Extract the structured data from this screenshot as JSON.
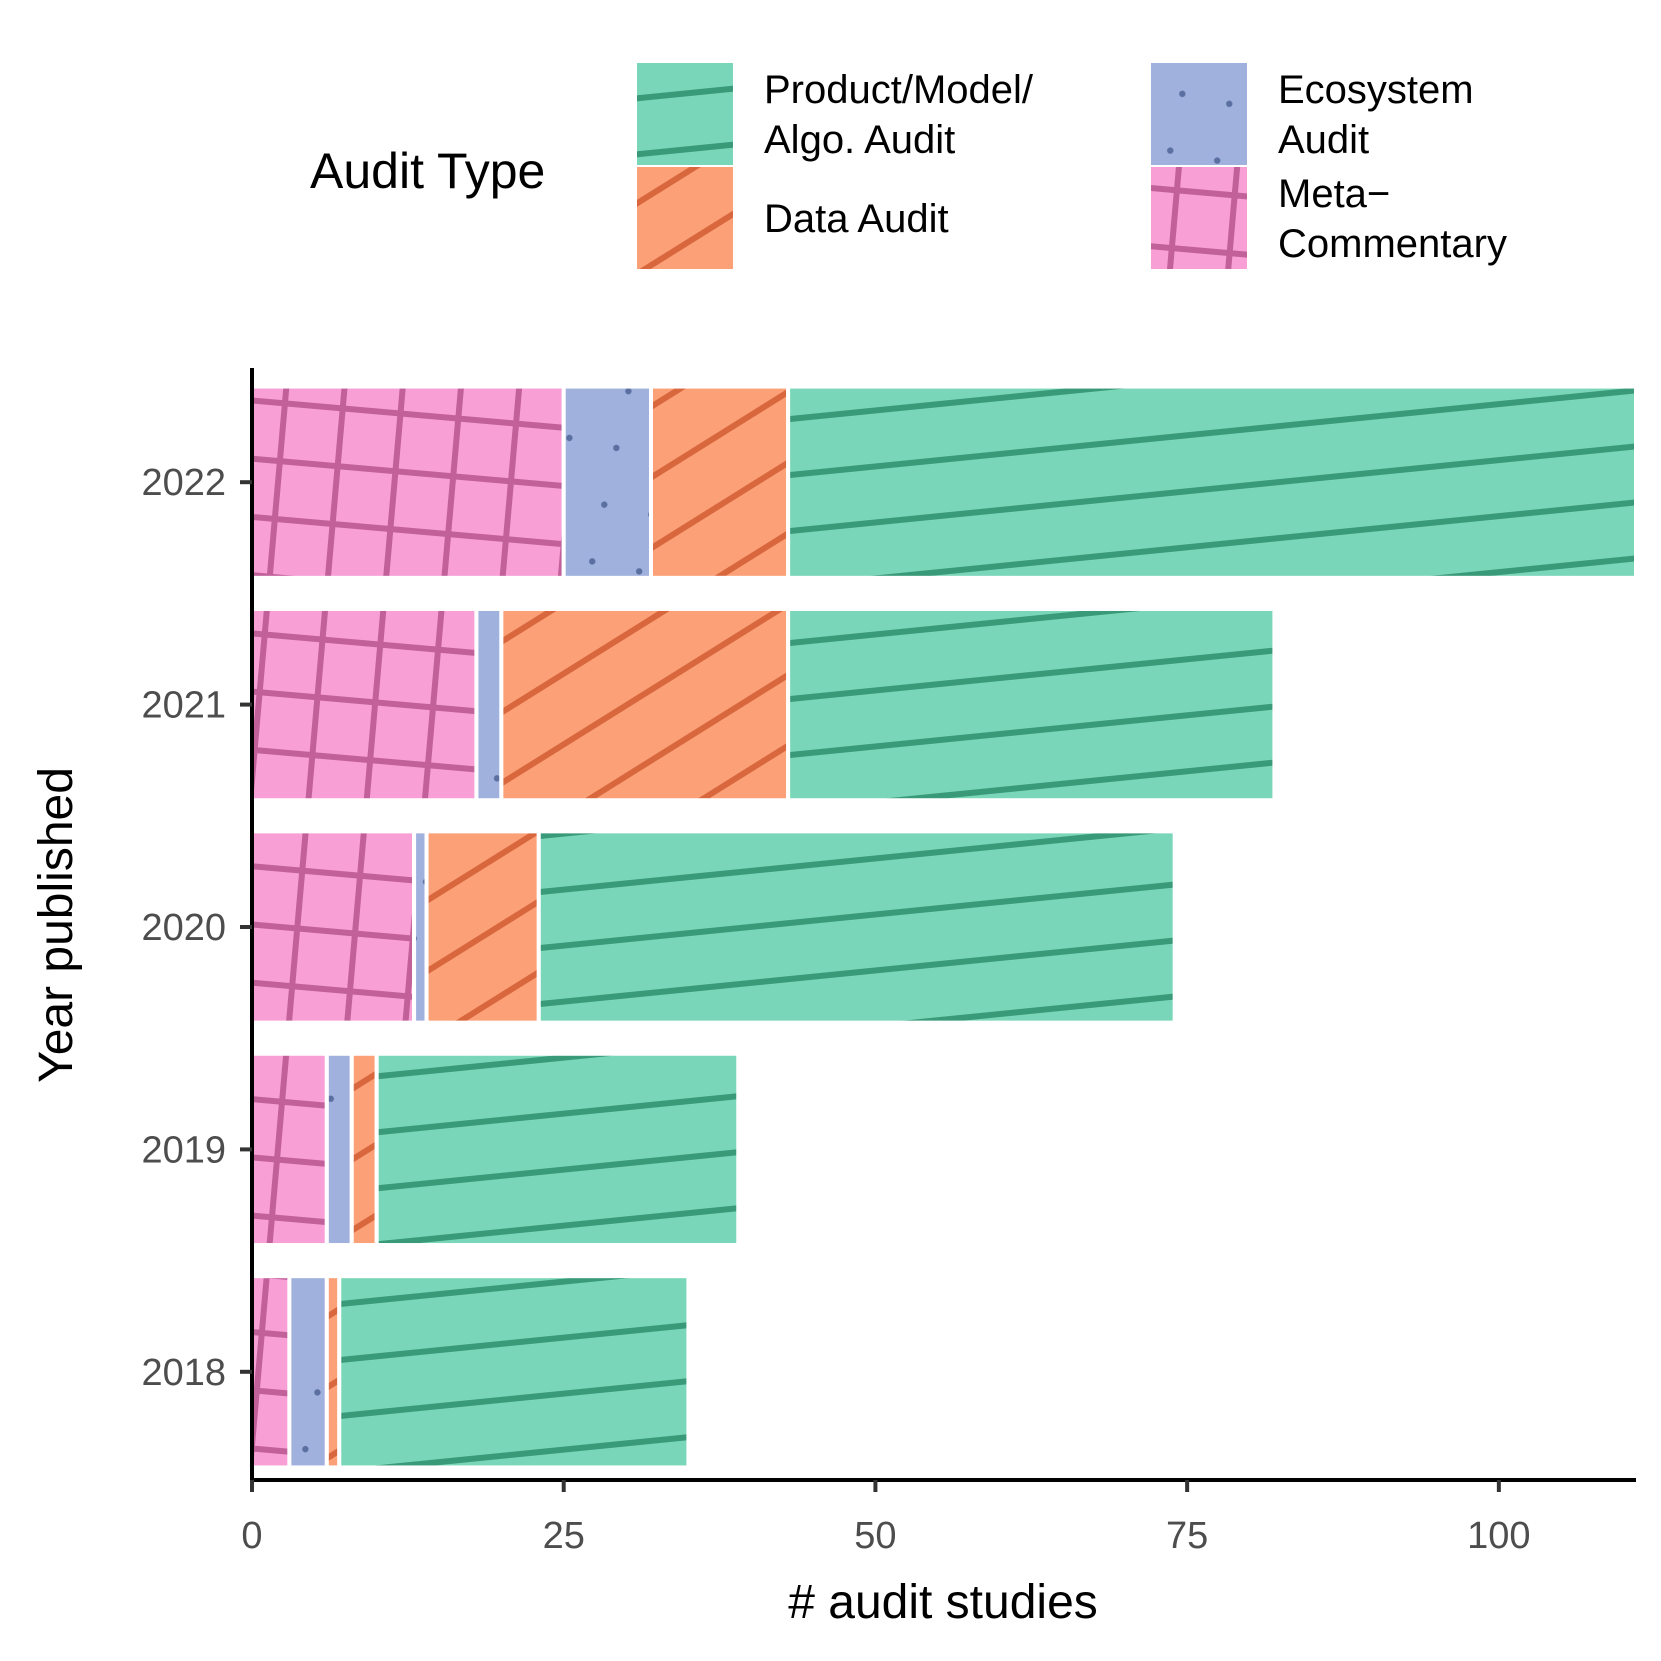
{
  "chart_data": {
    "type": "bar",
    "orientation": "horizontal",
    "stacked": true,
    "xlabel": "# audit studies",
    "ylabel": "Year published",
    "xlim": [
      0,
      111
    ],
    "x_ticks": [
      0,
      25,
      50,
      75,
      100
    ],
    "categories": [
      "2018",
      "2019",
      "2020",
      "2021",
      "2022"
    ],
    "legend": {
      "title": "Audit Type",
      "position": "top"
    },
    "series": [
      {
        "name": "Meta-Commentary",
        "label_lines": [
          "Meta−",
          "Commentary"
        ],
        "color": "#f89fd6",
        "line_color": "#c2609a",
        "pattern": "crosshatch",
        "values": [
          3,
          6,
          13,
          18,
          25
        ]
      },
      {
        "name": "Ecosystem Audit",
        "label_lines": [
          "Ecosystem",
          "Audit"
        ],
        "color": "#a0b1dd",
        "line_color": "#5b6fa0",
        "pattern": "dots",
        "values": [
          3,
          2,
          1,
          2,
          7
        ]
      },
      {
        "name": "Data Audit",
        "label_lines": [
          "Data Audit"
        ],
        "color": "#fca078",
        "line_color": "#d9673e",
        "pattern": "diagonal",
        "values": [
          1,
          2,
          9,
          23,
          11
        ]
      },
      {
        "name": "Product/Model/Algo. Audit",
        "label_lines": [
          "Product/Model/",
          "Algo. Audit"
        ],
        "color": "#7ad6b8",
        "line_color": "#389a78",
        "pattern": "stripes",
        "values": [
          28,
          29,
          51,
          39,
          68
        ]
      }
    ]
  }
}
